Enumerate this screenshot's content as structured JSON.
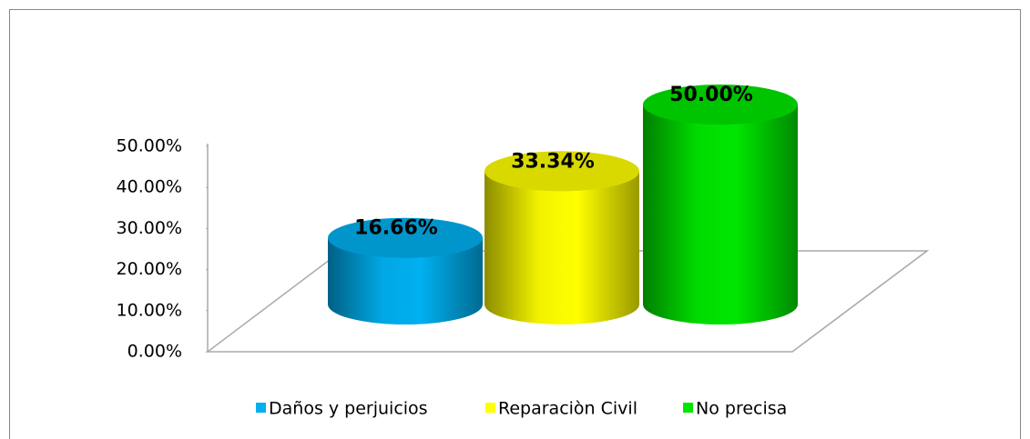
{
  "chart_data": {
    "type": "cylinder",
    "series": [
      {
        "name": "Daños y perjuicios",
        "color": "#00b0f0",
        "values": [
          16.66
        ],
        "value_labels": [
          "16.66%"
        ]
      },
      {
        "name": "Reparaciòn Civil",
        "color": "#ffff00",
        "values": [
          33.34
        ],
        "value_labels": [
          "33.34%"
        ]
      },
      {
        "name": "No precisa",
        "color": "#00e600",
        "values": [
          50.0
        ],
        "value_labels": [
          "50.00%"
        ]
      }
    ],
    "ylim": [
      0,
      50
    ],
    "yticks": [
      {
        "value": 0,
        "label": "0.00%"
      },
      {
        "value": 10,
        "label": "10.00%"
      },
      {
        "value": 20,
        "label": "20.00%"
      },
      {
        "value": 30,
        "label": "30.00%"
      },
      {
        "value": 40,
        "label": "40.00%"
      },
      {
        "value": 50,
        "label": "50.00%"
      }
    ],
    "legend": "bottom"
  }
}
